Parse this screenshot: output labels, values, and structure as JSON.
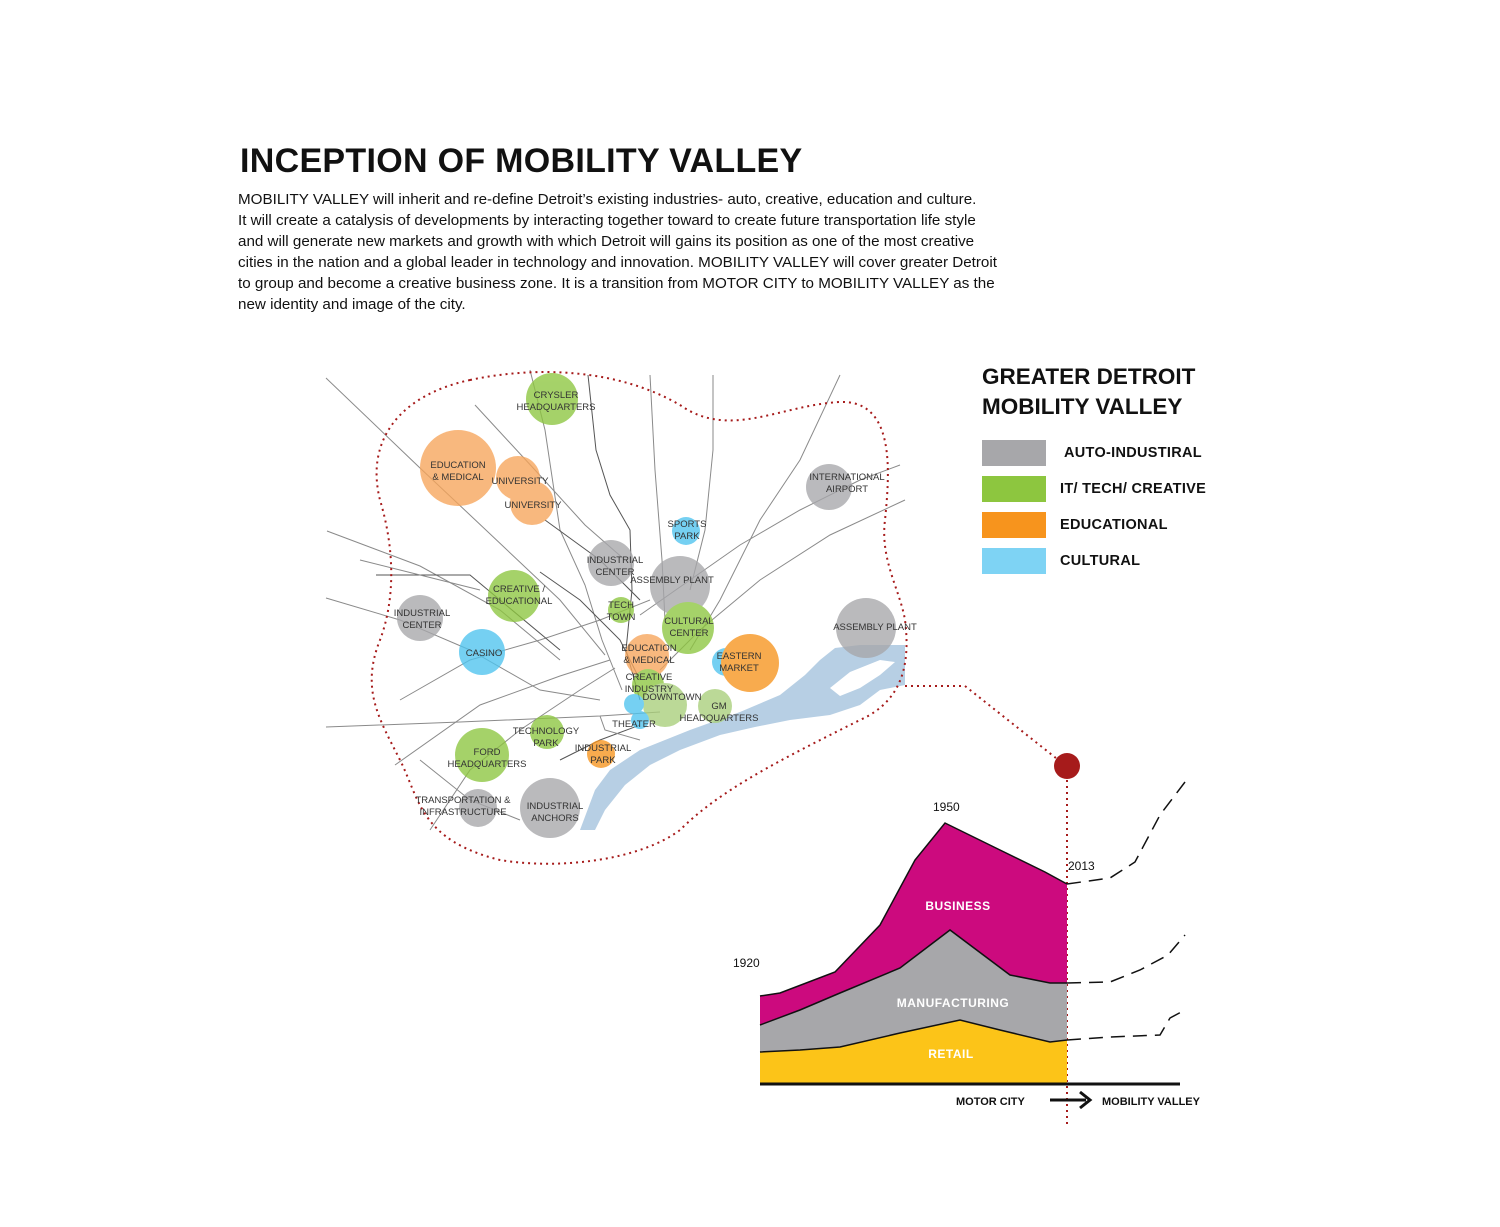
{
  "title": "INCEPTION OF MOBILITY VALLEY",
  "intro_lines": [
    "MOBILITY VALLEY will inherit and re-define Detroit’s existing industries- auto, creative, education and culture.",
    "It will create a catalysis of developments by interacting together toward to create future transportation life style",
    "and will generate new markets and growth with which Detroit will gains its position as one of the most creative",
    "cities in the nation and a global leader in technology and innovation.  MOBILITY VALLEY will cover greater Detroit",
    "to group and become a creative business zone. It  is a transition from MOTOR CITY to MOBILITY VALLEY as the",
    "new identity and image of the city."
  ],
  "legend": {
    "title_line1": "GREATER DETROIT",
    "title_line2": "MOBILITY VALLEY",
    "items": [
      {
        "label": "AUTO-INDUSTIRAL",
        "color": "#a7a7aa"
      },
      {
        "label": "IT/ TECH/ CREATIVE",
        "color": "#8dc63f"
      },
      {
        "label": "EDUCATIONAL",
        "color": "#f7941d"
      },
      {
        "label": "CULTURAL",
        "color": "#7ed3f4"
      }
    ]
  },
  "map_labels": {
    "crysler": [
      "CRYSLER",
      "HEADQUARTERS"
    ],
    "education_medical_nw": [
      "EDUCATION",
      "& MEDICAL"
    ],
    "university_1": [
      "UNIVERSITY"
    ],
    "university_2": [
      "UNIVERSITY"
    ],
    "international_airport": [
      "INTERNATIONAL",
      "AIRPORT"
    ],
    "sports_park": [
      "SPORTS",
      "PARK"
    ],
    "industrial_center_mid": [
      "INDUSTRIAL",
      "CENTER"
    ],
    "assembly_plant_mid": [
      "ASSEMBLY PLANT"
    ],
    "creative_educational": [
      "CREATIVE /",
      "EDUCATIONAL"
    ],
    "tech_town": [
      "TECH",
      "TOWN"
    ],
    "cultural_center": [
      "CULTURAL",
      "CENTER"
    ],
    "industrial_center_west": [
      "INDUSTRIAL",
      "CENTER"
    ],
    "assembly_plant_east": [
      "ASSEMBLY PLANT"
    ],
    "casino": [
      "CASINO"
    ],
    "education_medical_mid": [
      "EDUCATION",
      "& MEDICAL"
    ],
    "eastern_market": [
      "EASTERN",
      "MARKET"
    ],
    "creative_industry": [
      "CREATIVE",
      "INDUSTRY"
    ],
    "downtown": [
      "DOWNTOWN"
    ],
    "gm_headquarters": [
      "GM",
      "HEADQUARTERS"
    ],
    "theater": [
      "THEATER"
    ],
    "technology_park": [
      "TECHNOLOGY",
      "PARK"
    ],
    "industrial_park": [
      "INDUSTRIAL",
      "PARK"
    ],
    "ford_headquarters": [
      "FORD",
      "HEADQUARTERS"
    ],
    "transportation_infrastructure": [
      "TRANSPORTATION &",
      "INFRASTRUCTURE"
    ],
    "industrial_anchors": [
      "INDUSTRIAL",
      "ANCHORS"
    ]
  },
  "timeline": {
    "year_1920": "1920",
    "year_1950": "1950",
    "year_2013": "2013",
    "bands": {
      "business": "BUSINESS",
      "manufacturing": "MANUFACTURING",
      "retail": "RETAIL"
    },
    "axis_from": "MOTOR CITY",
    "axis_to": "MOBILITY VALLEY",
    "colors": {
      "business": "#cc0a7e",
      "manufacturing": "#a7a7aa",
      "retail": "#fcc418",
      "marker": "#a61b1b"
    }
  }
}
